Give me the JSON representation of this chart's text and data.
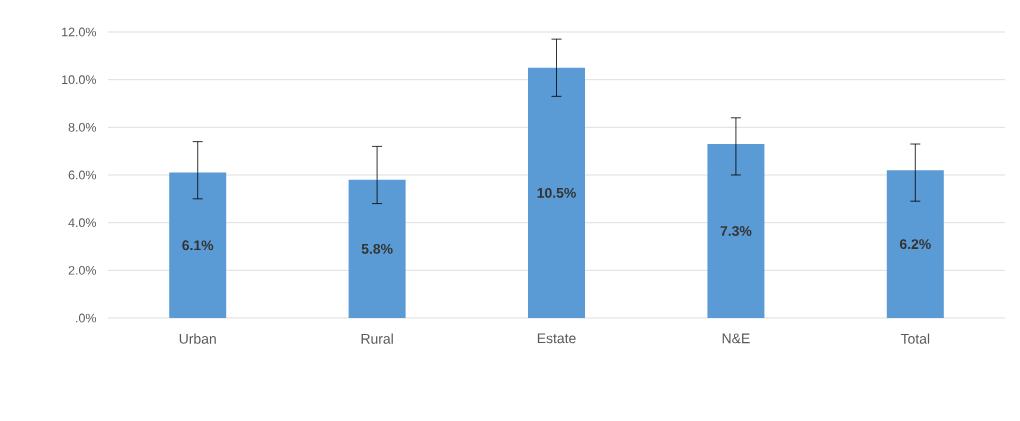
{
  "chart_data": {
    "type": "bar",
    "categories": [
      "Urban",
      "Rural",
      "Estate",
      "N&E",
      "Total"
    ],
    "values": [
      6.1,
      5.8,
      10.5,
      7.3,
      6.2
    ],
    "value_labels": [
      "6.1%",
      "5.8%",
      "10.5%",
      "7.3%",
      "6.2%"
    ],
    "errors": [
      [
        5.0,
        7.4
      ],
      [
        4.8,
        7.2
      ],
      [
        9.3,
        11.7
      ],
      [
        6.0,
        8.4
      ],
      [
        4.9,
        7.3
      ]
    ],
    "color": "#5b9bd5",
    "ylim": [
      0,
      12
    ],
    "yticks": [
      {
        "value": 0,
        "label": ".0%"
      },
      {
        "value": 2,
        "label": "2.0%"
      },
      {
        "value": 4,
        "label": "4.0%"
      },
      {
        "value": 6,
        "label": "6.0%"
      },
      {
        "value": 8,
        "label": "8.0%"
      },
      {
        "value": 10,
        "label": "10.0%"
      },
      {
        "value": 12,
        "label": "12.0%"
      }
    ],
    "grid": "y"
  }
}
